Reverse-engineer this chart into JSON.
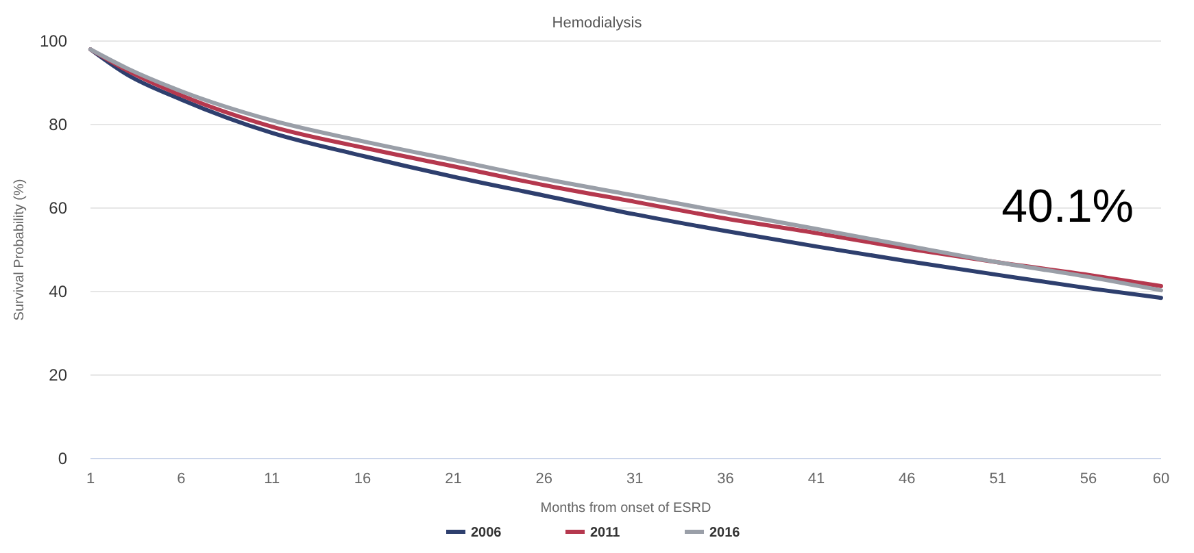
{
  "chart_data": {
    "type": "line",
    "title": "Hemodialysis",
    "xlabel": "Months from onset of ESRD",
    "ylabel": "Survival Probability (%)",
    "x": [
      1,
      3,
      6,
      11,
      16,
      21,
      26,
      31,
      36,
      41,
      46,
      51,
      56,
      60
    ],
    "series": [
      {
        "name": "2006",
        "color": "#2e3f6e",
        "values": [
          98,
          92,
          86,
          78,
          72.5,
          67.5,
          63,
          58.5,
          54.5,
          50.8,
          47.3,
          44,
          40.8,
          38.5
        ]
      },
      {
        "name": "2011",
        "color": "#b5384e",
        "values": [
          98,
          93,
          87,
          79.5,
          74.5,
          70,
          65.5,
          61.5,
          57.5,
          54,
          50.3,
          47,
          44,
          41.3
        ]
      },
      {
        "name": "2016",
        "color": "#9a9fa8",
        "values": [
          98,
          93.5,
          88,
          81,
          76,
          71.5,
          67,
          63,
          59,
          55,
          51,
          47,
          43.5,
          40.3
        ]
      }
    ],
    "xlim": [
      1,
      60
    ],
    "xticks": [
      1,
      6,
      11,
      16,
      21,
      26,
      31,
      36,
      41,
      46,
      51,
      56,
      60
    ],
    "ylim": [
      0,
      100
    ],
    "yticks": [
      0,
      20,
      40,
      60,
      80,
      100
    ],
    "grid": "y",
    "legend": "bottom",
    "marker": "none",
    "line_style": "solid",
    "annotations": [
      "40.1%"
    ]
  }
}
